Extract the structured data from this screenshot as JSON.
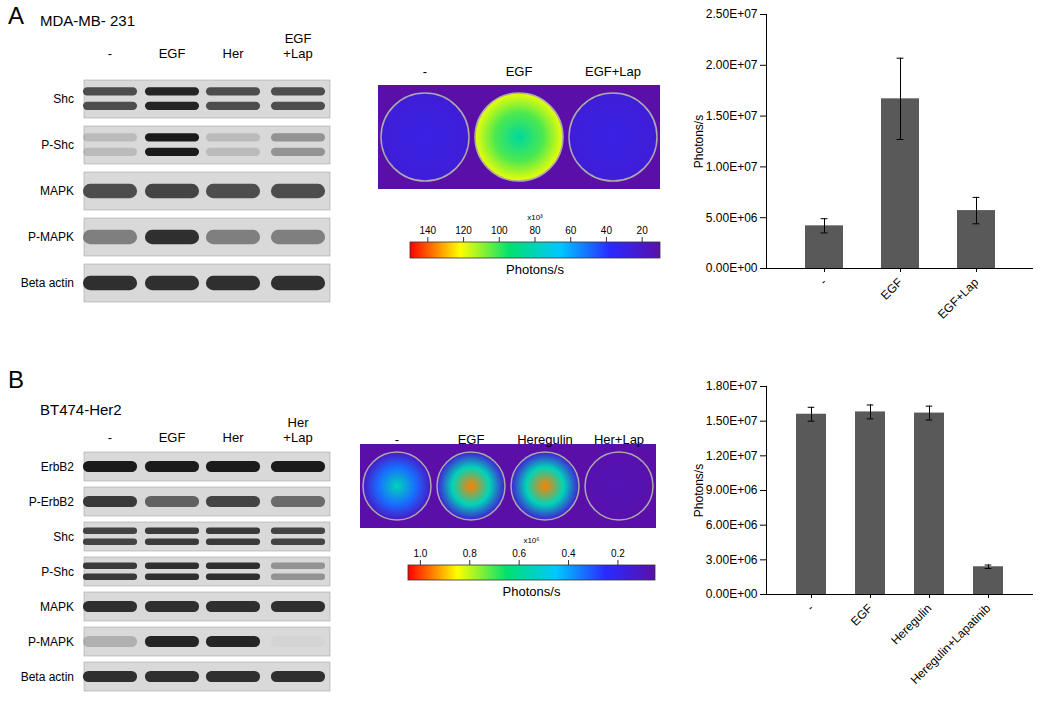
{
  "chart_data": [
    {
      "type": "bar",
      "panel": "A",
      "categories": [
        "-",
        "EGF",
        "EGF+Lap"
      ],
      "values": [
        4200000,
        16700000,
        5700000
      ],
      "errors": [
        700000,
        4000000,
        1300000
      ],
      "color": "#595959",
      "y_label": "Photons/s",
      "ylim": [
        0,
        25000000
      ],
      "yticks": [
        {
          "value": 0,
          "label": "0.00E+00"
        },
        {
          "value": 5000000,
          "label": "5.00E+06"
        },
        {
          "value": 10000000,
          "label": "1.00E+07"
        },
        {
          "value": 15000000,
          "label": "1.50E+07"
        },
        {
          "value": 20000000,
          "label": "2.00E+07"
        },
        {
          "value": 25000000,
          "label": "2.50E+07"
        }
      ],
      "grid": false
    },
    {
      "type": "bar",
      "panel": "B",
      "categories": [
        "-",
        "EGF",
        "Heregulin",
        "Heregulin+Lapatinib"
      ],
      "values": [
        15600000,
        15800000,
        15700000,
        2400000
      ],
      "errors": [
        600000,
        600000,
        600000,
        150000
      ],
      "color": "#595959",
      "y_label": "Photons/s",
      "ylim": [
        0,
        18000000
      ],
      "yticks": [
        {
          "value": 0,
          "label": "0.00E+00"
        },
        {
          "value": 3000000,
          "label": "3.00E+06"
        },
        {
          "value": 6000000,
          "label": "6.00E+06"
        },
        {
          "value": 9000000,
          "label": "9.00E+06"
        },
        {
          "value": 12000000,
          "label": "1.20E+07"
        },
        {
          "value": 15000000,
          "label": "1.50E+07"
        },
        {
          "value": 18000000,
          "label": "1.80E+07"
        }
      ],
      "grid": false
    }
  ],
  "panels": [
    {
      "label": "A",
      "cell_line": "MDA-MB- 231",
      "blot": {
        "lanes": [
          [
            "-"
          ],
          [
            "EGF"
          ],
          [
            "Her"
          ],
          [
            "EGF",
            "+Lap"
          ]
        ],
        "rows": [
          {
            "name": "Shc",
            "doublet": true,
            "intensity": [
              0.7,
              0.9,
              0.7,
              0.7
            ]
          },
          {
            "name": "P-Shc",
            "doublet": true,
            "intensity": [
              0.15,
              0.95,
              0.15,
              0.35
            ]
          },
          {
            "name": "MAPK",
            "doublet": false,
            "intensity": [
              0.7,
              0.75,
              0.7,
              0.7
            ]
          },
          {
            "name": "P-MAPK",
            "doublet": false,
            "intensity": [
              0.45,
              0.85,
              0.45,
              0.45
            ]
          },
          {
            "name": "Beta actin",
            "doublet": false,
            "intensity": [
              0.85,
              0.85,
              0.85,
              0.85
            ]
          }
        ]
      },
      "image": {
        "wells": [
          {
            "label": "-",
            "center": 30,
            "edge": 25
          },
          {
            "label": "EGF",
            "center": 85,
            "edge": 120
          },
          {
            "label": "EGF+Lap",
            "center": 30,
            "edge": 25
          }
        ],
        "color_bar": {
          "range": [
            150,
            10
          ],
          "ticks": [
            140,
            120,
            100,
            80,
            60,
            40,
            20
          ],
          "multiplier": "x10³",
          "label": "Photons/s"
        }
      }
    },
    {
      "label": "B",
      "cell_line": "BT474-Her2",
      "blot": {
        "lanes": [
          [
            "-"
          ],
          [
            "EGF"
          ],
          [
            "Her"
          ],
          [
            "Her",
            "+Lap"
          ]
        ],
        "rows": [
          {
            "name": "ErbB2",
            "doublet": false,
            "intensity": [
              0.95,
              0.95,
              0.95,
              0.95
            ]
          },
          {
            "name": "P-ErbB2",
            "doublet": false,
            "intensity": [
              0.8,
              0.6,
              0.75,
              0.55
            ]
          },
          {
            "name": "Shc",
            "doublet": true,
            "intensity": [
              0.75,
              0.8,
              0.8,
              0.75
            ]
          },
          {
            "name": "P-Shc",
            "doublet": true,
            "intensity": [
              0.8,
              0.85,
              0.85,
              0.35
            ]
          },
          {
            "name": "MAPK",
            "doublet": false,
            "intensity": [
              0.85,
              0.85,
              0.85,
              0.85
            ]
          },
          {
            "name": "P-MAPK",
            "doublet": false,
            "intensity": [
              0.2,
              0.9,
              0.9,
              0.02
            ]
          },
          {
            "name": "Beta actin",
            "doublet": false,
            "intensity": [
              0.85,
              0.85,
              0.85,
              0.85
            ]
          }
        ]
      },
      "image": {
        "wells": [
          {
            "label": "-",
            "center": 0.55,
            "edge": 0.12
          },
          {
            "label": "EGF",
            "center": 0.95,
            "edge": 0.15
          },
          {
            "label": "Heregulin",
            "center": 0.95,
            "edge": 0.15
          },
          {
            "label": "Her+Lap",
            "center": 0.08,
            "edge": 0.06
          }
        ],
        "color_bar": {
          "range": [
            1.05,
            0.05
          ],
          "ticks": [
            {
              "value": 1,
              "label": "1.0"
            },
            0.8,
            0.6,
            0.4,
            0.2
          ],
          "multiplier": "x10⁶",
          "label": "Photons/s"
        }
      }
    }
  ]
}
